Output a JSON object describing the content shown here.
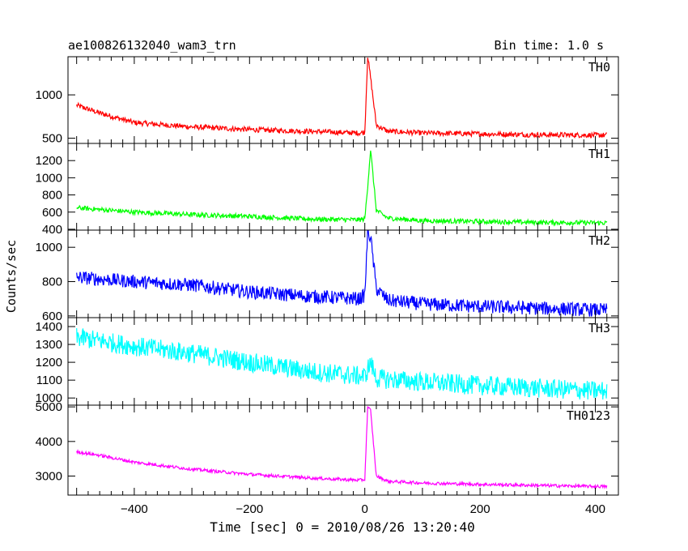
{
  "header": {
    "title": "ae100826132040_wam3_trn",
    "bin_time": "Bin time: 1.0 s"
  },
  "chart_data": {
    "type": "line",
    "layout": "stacked-panels",
    "xlabel": "Time [sec] 0 = 2010/08/26 13:20:40",
    "ylabel": "Counts/sec",
    "xlim": [
      -515,
      440
    ],
    "x_ticks": [
      -400,
      -200,
      0,
      200,
      400
    ],
    "x_tick_labels": [
      "−400",
      "−200",
      "0",
      "200",
      "400"
    ],
    "panels": [
      {
        "name": "TH0",
        "color": "#ff0000",
        "ylim": [
          440,
          1440
        ],
        "y_ticks": [
          500,
          1000
        ],
        "y_tick_labels": [
          "500",
          "1000"
        ],
        "x": [
          -500,
          -460,
          -400,
          -300,
          -200,
          -100,
          -10,
          0,
          5,
          10,
          20,
          40,
          100,
          200,
          300,
          400,
          420
        ],
        "values": [
          880,
          790,
          680,
          630,
          600,
          580,
          560,
          570,
          1450,
          1200,
          650,
          580,
          560,
          550,
          540,
          535,
          535
        ],
        "noise": 30
      },
      {
        "name": "TH1",
        "color": "#00ff00",
        "ylim": [
          390,
          1400
        ],
        "y_ticks": [
          400,
          600,
          800,
          1000,
          1200
        ],
        "y_tick_labels": [
          "400",
          "600",
          "800",
          "1000",
          "1200"
        ],
        "x": [
          -500,
          -400,
          -300,
          -200,
          -100,
          -10,
          0,
          5,
          10,
          20,
          40,
          100,
          200,
          300,
          400,
          420
        ],
        "values": [
          650,
          600,
          570,
          550,
          520,
          510,
          520,
          900,
          1330,
          620,
          530,
          500,
          490,
          480,
          475,
          475
        ],
        "noise": 28
      },
      {
        "name": "TH2",
        "color": "#0000ff",
        "ylim": [
          590,
          1100
        ],
        "y_ticks": [
          600,
          800,
          1000
        ],
        "y_tick_labels": [
          "600",
          "800",
          "1000"
        ],
        "x": [
          -500,
          -400,
          -300,
          -200,
          -100,
          -10,
          0,
          5,
          10,
          20,
          40,
          100,
          200,
          300,
          400,
          420
        ],
        "values": [
          825,
          800,
          780,
          740,
          715,
          700,
          720,
          1090,
          1060,
          760,
          690,
          670,
          655,
          645,
          635,
          635
        ],
        "noise": 40
      },
      {
        "name": "TH3",
        "color": "#00ffff",
        "ylim": [
          960,
          1450
        ],
        "y_ticks": [
          1000,
          1100,
          1200,
          1300,
          1400
        ],
        "y_tick_labels": [
          "1000",
          "1100",
          "1200",
          "1300",
          "1400"
        ],
        "x": [
          -500,
          -400,
          -300,
          -200,
          -100,
          0,
          10,
          20,
          100,
          200,
          300,
          400,
          420
        ],
        "values": [
          1340,
          1290,
          1250,
          1200,
          1150,
          1120,
          1200,
          1110,
          1090,
          1070,
          1055,
          1040,
          1040
        ],
        "noise": 55
      },
      {
        "name": "TH0123",
        "color": "#ff00ff",
        "ylim": [
          2450,
          5050
        ],
        "y_ticks": [
          3000,
          4000,
          5000
        ],
        "y_tick_labels": [
          "3000",
          "4000",
          "5000"
        ],
        "x": [
          -500,
          -460,
          -400,
          -300,
          -200,
          -100,
          -10,
          0,
          5,
          10,
          20,
          40,
          100,
          200,
          300,
          400,
          420
        ],
        "values": [
          3700,
          3600,
          3400,
          3200,
          3050,
          2950,
          2880,
          2900,
          5000,
          4900,
          3000,
          2850,
          2800,
          2760,
          2730,
          2700,
          2700
        ],
        "noise": 45
      }
    ]
  }
}
